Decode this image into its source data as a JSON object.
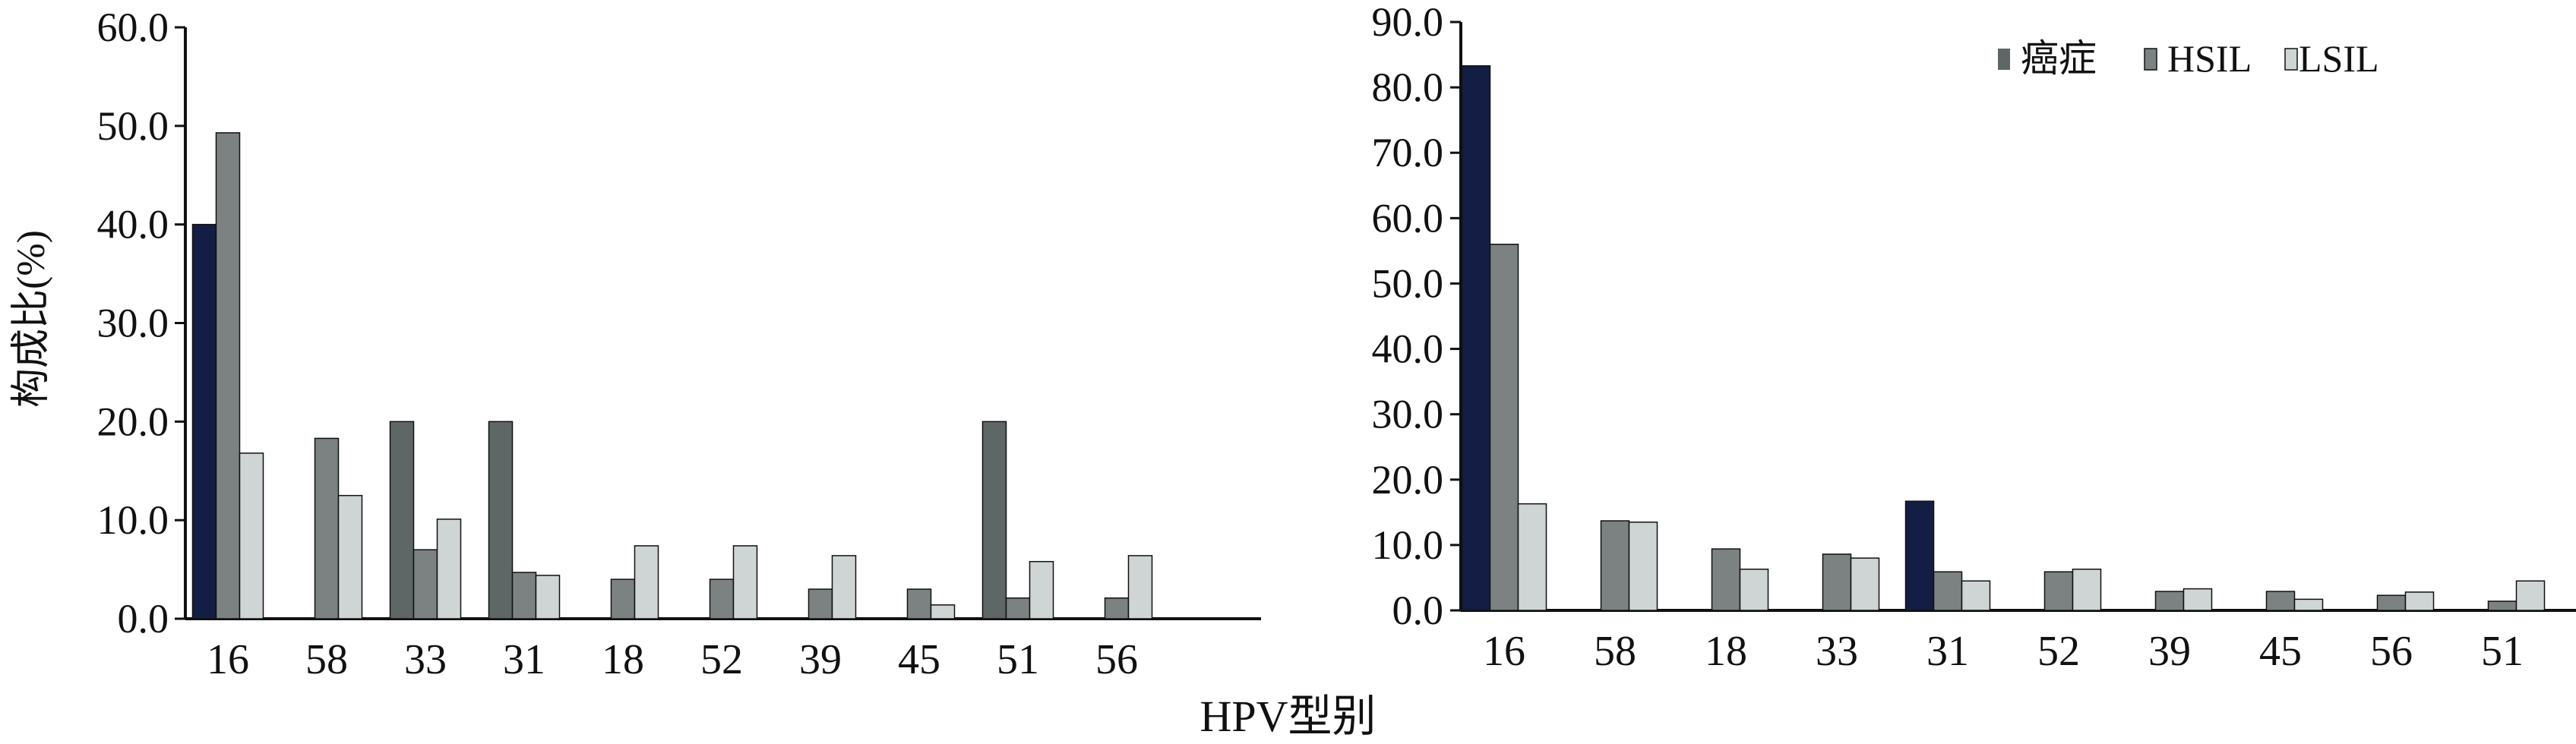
{
  "x_title": "HPV型别",
  "legend": {
    "items": [
      "癌症",
      "HSIL",
      "LSIL"
    ]
  },
  "colors": {
    "cancer_dark": "#141d44",
    "cancer": "#5f6766",
    "hsil": "#7b8281",
    "lsil": "#cfd5d4",
    "axis": "#111111"
  },
  "chart_data": [
    {
      "type": "bar",
      "ylabel": "构成比(%)",
      "ylim": [
        0,
        60
      ],
      "ytick_labels": [
        "0.0",
        "10.0",
        "20.0",
        "30.0",
        "40.0",
        "50.0",
        "60.0"
      ],
      "categories": [
        "16",
        "58",
        "33",
        "31",
        "18",
        "52",
        "39",
        "45",
        "51",
        "56"
      ],
      "series": [
        {
          "name": "癌症",
          "values": [
            40.0,
            0,
            20.0,
            20.0,
            0,
            0,
            0,
            0,
            20.0,
            0
          ]
        },
        {
          "name": "HSIL",
          "values": [
            49.3,
            18.3,
            7.0,
            4.7,
            4.0,
            4.0,
            3.0,
            3.0,
            2.1,
            2.1
          ]
        },
        {
          "name": "LSIL",
          "values": [
            16.8,
            12.5,
            10.1,
            4.4,
            7.4,
            7.4,
            6.4,
            1.4,
            5.8,
            6.4
          ]
        }
      ]
    },
    {
      "type": "bar",
      "ylabel": "",
      "ylim": [
        0,
        90
      ],
      "ytick_labels": [
        "0.0",
        "10.0",
        "20.0",
        "30.0",
        "40.0",
        "50.0",
        "60.0",
        "70.0",
        "80.0",
        "90.0"
      ],
      "categories": [
        "16",
        "58",
        "18",
        "33",
        "31",
        "52",
        "39",
        "45",
        "56",
        "51"
      ],
      "series": [
        {
          "name": "癌症",
          "values": [
            83.3,
            0,
            0,
            0,
            16.7,
            0,
            0,
            0,
            0,
            0
          ]
        },
        {
          "name": "HSIL",
          "values": [
            56.0,
            13.7,
            9.4,
            8.6,
            5.9,
            5.9,
            2.9,
            2.9,
            2.3,
            1.4
          ]
        },
        {
          "name": "LSIL",
          "values": [
            16.3,
            13.5,
            6.3,
            8.0,
            4.5,
            6.3,
            3.3,
            1.7,
            2.8,
            4.5
          ]
        }
      ]
    }
  ]
}
